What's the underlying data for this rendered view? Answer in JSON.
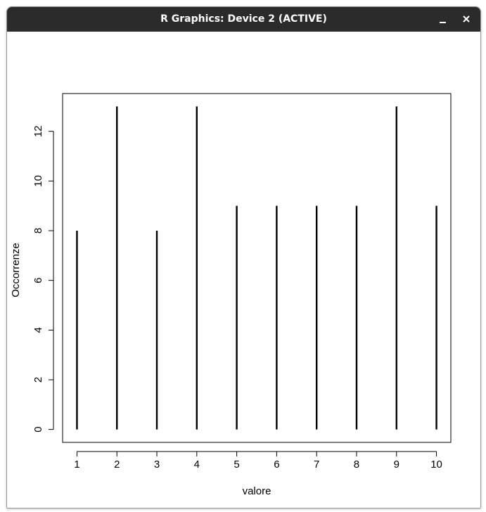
{
  "window": {
    "title": "R Graphics: Device 2 (ACTIVE)",
    "minimize_icon": "minimize-icon",
    "close_icon": "close-icon"
  },
  "chart_data": {
    "type": "bar",
    "style": "vertical-lines",
    "x": [
      1,
      2,
      3,
      4,
      5,
      6,
      7,
      8,
      9,
      10
    ],
    "values": [
      8,
      13,
      8,
      13,
      9,
      9,
      9,
      9,
      13,
      9
    ],
    "x_ticks": [
      1,
      2,
      3,
      4,
      5,
      6,
      7,
      8,
      9,
      10
    ],
    "y_ticks": [
      0,
      2,
      4,
      6,
      8,
      10,
      12
    ],
    "xlabel": "valore",
    "ylabel": "Occorrenze",
    "xlim": [
      0.64,
      10.36
    ],
    "ylim": [
      -0.52,
      13.52
    ],
    "grid": false,
    "line_color": "#000000"
  }
}
